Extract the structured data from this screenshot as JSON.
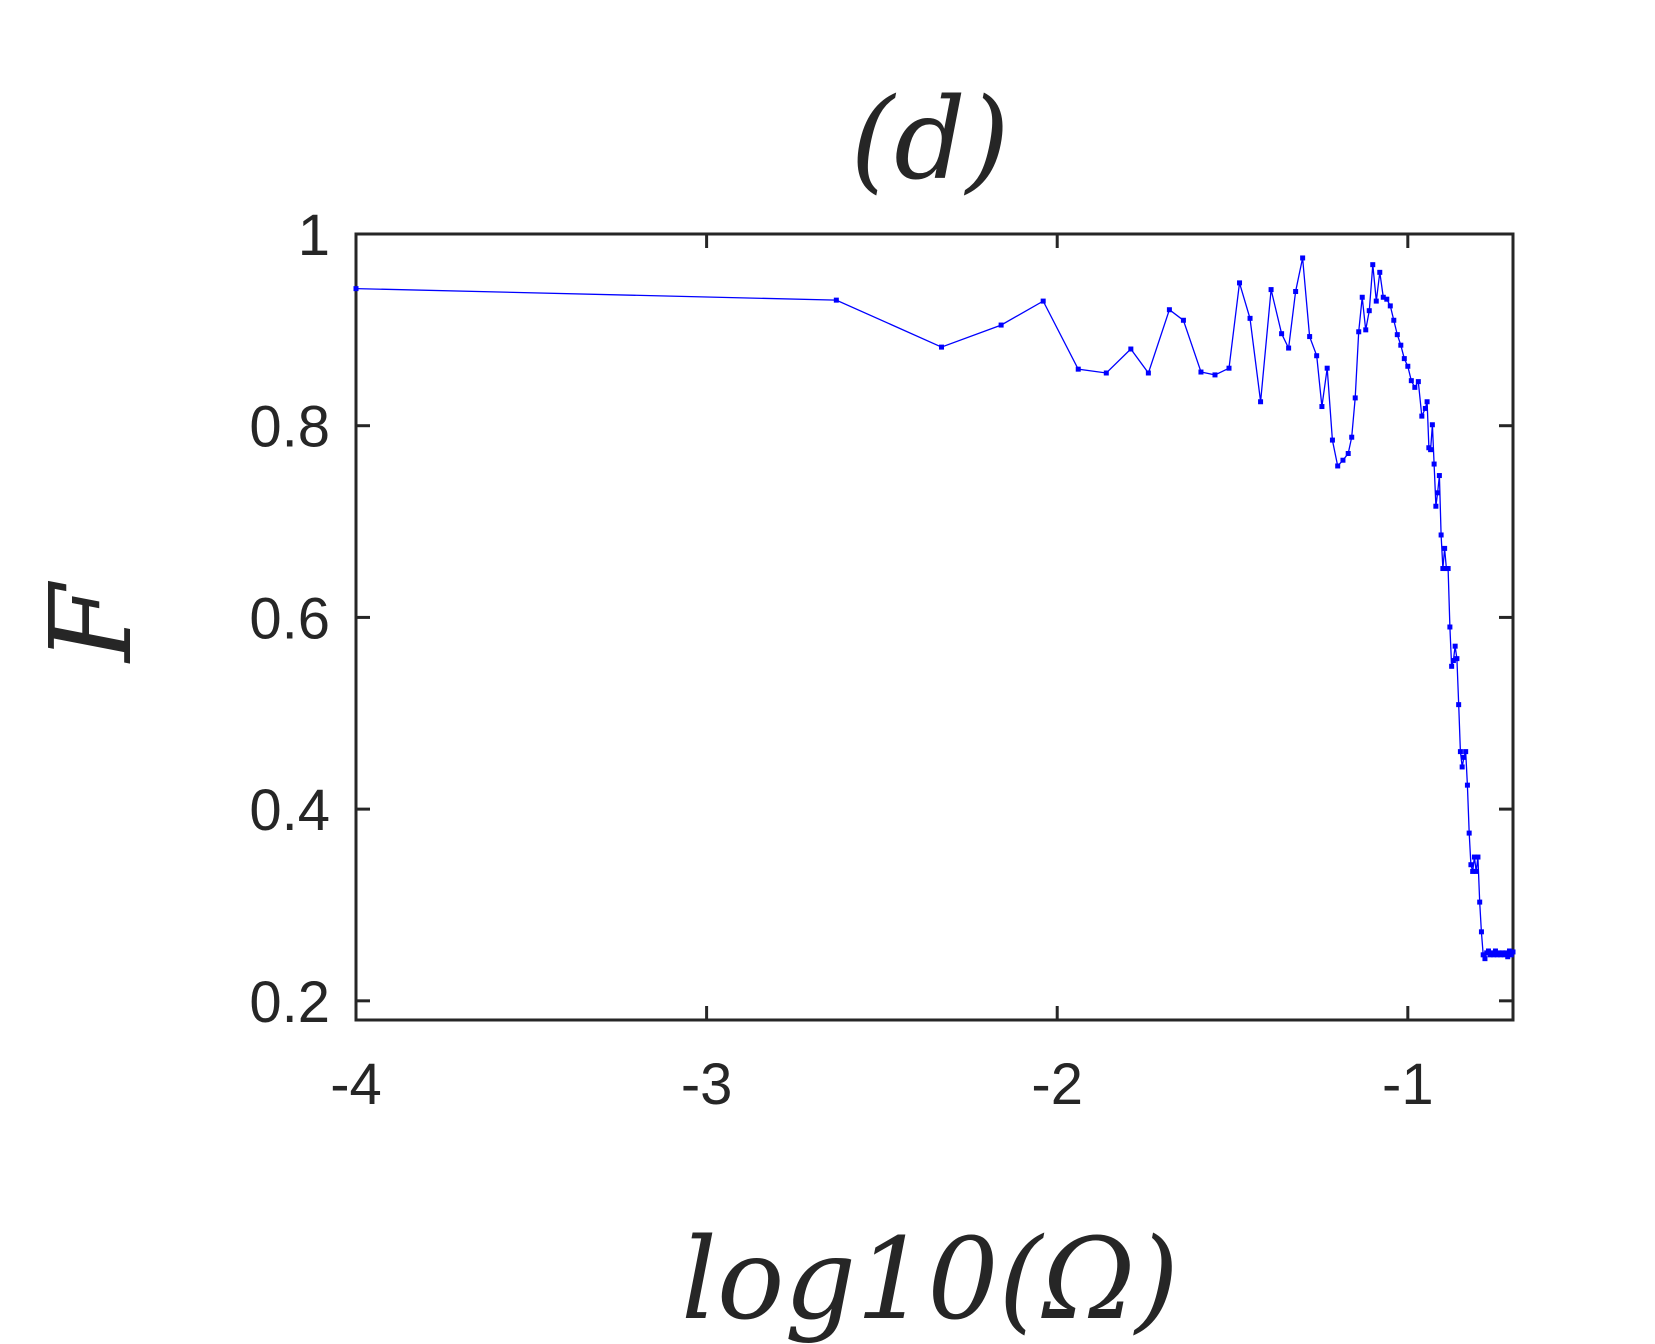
{
  "chart_data": {
    "type": "line",
    "title": "(d)",
    "xlabel": "log10(Ω)",
    "ylabel": "F",
    "xlim": [
      -4,
      -0.7
    ],
    "ylim": [
      0.18,
      1.0
    ],
    "xticks": [
      -4,
      -3,
      -2,
      -1
    ],
    "xtick_labels": [
      "-4",
      "-3",
      "-2",
      "-1"
    ],
    "yticks": [
      0.2,
      0.4,
      0.6,
      0.8,
      1
    ],
    "ytick_labels": [
      "0.2",
      "0.4",
      "0.6",
      "0.8",
      "1"
    ],
    "grid": false,
    "legend": "none",
    "series": [
      {
        "color": "#0000ff",
        "marker": "square",
        "x": [
          -4.0,
          -2.63,
          -2.33,
          -2.16,
          -2.04,
          -1.94,
          -1.86,
          -1.79,
          -1.74,
          -1.68,
          -1.64,
          -1.59,
          -1.55,
          -1.51,
          -1.48,
          -1.45,
          -1.42,
          -1.39,
          -1.36,
          -1.34,
          -1.32,
          -1.3,
          -1.28,
          -1.26,
          -1.245,
          -1.23,
          -1.215,
          -1.2,
          -1.185,
          -1.17,
          -1.16,
          -1.15,
          -1.14,
          -1.13,
          -1.12,
          -1.11,
          -1.1,
          -1.09,
          -1.08,
          -1.07,
          -1.06,
          -1.05,
          -1.04,
          -1.03,
          -1.02,
          -1.01,
          -1.0,
          -0.99,
          -0.98,
          -0.97,
          -0.96,
          -0.95,
          -0.945,
          -0.94,
          -0.935,
          -0.93,
          -0.925,
          -0.92,
          -0.915,
          -0.91,
          -0.905,
          -0.9,
          -0.895,
          -0.89,
          -0.885,
          -0.88,
          -0.875,
          -0.87,
          -0.865,
          -0.86,
          -0.855,
          -0.85,
          -0.845,
          -0.84,
          -0.835,
          -0.83,
          -0.825,
          -0.82,
          -0.815,
          -0.81,
          -0.805,
          -0.8,
          -0.795,
          -0.79,
          -0.785,
          -0.78,
          -0.775,
          -0.77,
          -0.765,
          -0.76,
          -0.755,
          -0.75,
          -0.745,
          -0.74,
          -0.735,
          -0.73,
          -0.725,
          -0.72,
          -0.715,
          -0.71,
          -0.705,
          -0.7
        ],
        "y": [
          0.943,
          0.931,
          0.882,
          0.905,
          0.93,
          0.859,
          0.855,
          0.88,
          0.855,
          0.921,
          0.91,
          0.856,
          0.853,
          0.86,
          0.949,
          0.912,
          0.825,
          0.942,
          0.896,
          0.881,
          0.94,
          0.975,
          0.893,
          0.873,
          0.82,
          0.86,
          0.785,
          0.758,
          0.764,
          0.771,
          0.788,
          0.829,
          0.898,
          0.934,
          0.9,
          0.92,
          0.968,
          0.93,
          0.96,
          0.934,
          0.932,
          0.925,
          0.91,
          0.895,
          0.884,
          0.87,
          0.862,
          0.847,
          0.84,
          0.846,
          0.81,
          0.818,
          0.825,
          0.777,
          0.775,
          0.801,
          0.76,
          0.716,
          0.73,
          0.748,
          0.686,
          0.651,
          0.672,
          0.651,
          0.651,
          0.59,
          0.549,
          0.555,
          0.57,
          0.557,
          0.509,
          0.46,
          0.444,
          0.454,
          0.46,
          0.425,
          0.375,
          0.342,
          0.335,
          0.35,
          0.335,
          0.35,
          0.303,
          0.272,
          0.248,
          0.244,
          0.25,
          0.252,
          0.248,
          0.25,
          0.248,
          0.252,
          0.248,
          0.25,
          0.248,
          0.25,
          0.248,
          0.25,
          0.246,
          0.252,
          0.248,
          0.251
        ]
      }
    ]
  }
}
